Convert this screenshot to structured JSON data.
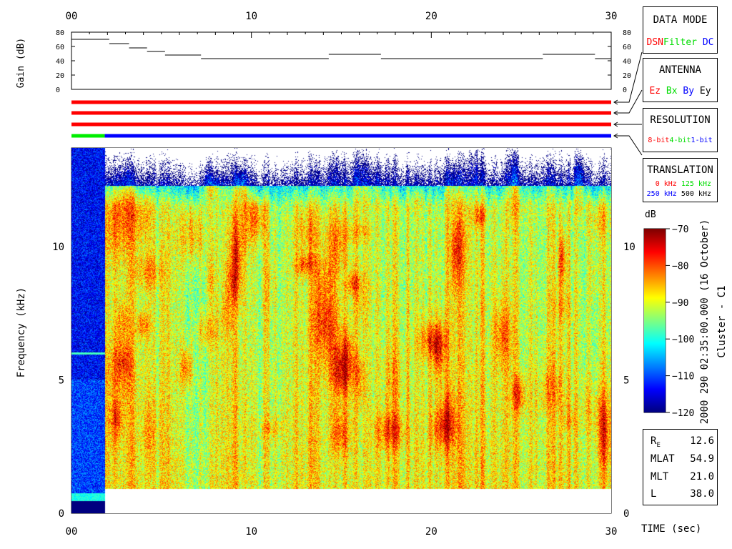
{
  "gain_panel": {
    "ylabel": "Gain (dB)",
    "yticks": [
      "80",
      "60",
      "40",
      "20",
      "0"
    ],
    "ylim": [
      0,
      80
    ],
    "xticks": [
      "00",
      "10",
      "20",
      "30"
    ],
    "xlim": [
      0,
      30
    ],
    "gain_steps": [
      {
        "x0": 0,
        "x1": 2.1,
        "y": 70
      },
      {
        "x0": 2.1,
        "x1": 3.2,
        "y": 64
      },
      {
        "x0": 3.2,
        "x1": 4.2,
        "y": 58
      },
      {
        "x0": 4.2,
        "x1": 5.2,
        "y": 53
      },
      {
        "x0": 5.2,
        "x1": 7.2,
        "y": 48
      },
      {
        "x0": 7.2,
        "x1": 14.3,
        "y": 43
      },
      {
        "x0": 14.3,
        "x1": 17.2,
        "y": 49
      },
      {
        "x0": 17.2,
        "x1": 26.2,
        "y": 43
      },
      {
        "x0": 26.2,
        "x1": 29.1,
        "y": 49
      },
      {
        "x0": 29.1,
        "x1": 30,
        "y": 43
      }
    ]
  },
  "mode_bars": [
    {
      "name": "data-mode",
      "segments": [
        {
          "x0": 0,
          "x1": 30,
          "color": "#ff0000"
        }
      ]
    },
    {
      "name": "antenna",
      "segments": [
        {
          "x0": 0,
          "x1": 30,
          "color": "#ff0000"
        }
      ]
    },
    {
      "name": "resolution",
      "segments": [
        {
          "x0": 0,
          "x1": 30,
          "color": "#ff0000"
        }
      ]
    },
    {
      "name": "translation",
      "segments": [
        {
          "x0": 0,
          "x1": 1.85,
          "color": "#00ee00"
        },
        {
          "x0": 1.85,
          "x1": 30,
          "color": "#0000ff"
        }
      ]
    }
  ],
  "legend_boxes": {
    "data_mode": {
      "title": "DATA MODE",
      "items": [
        {
          "label": "DSN",
          "color": "#ff0000"
        },
        {
          "label": "Filter",
          "color": "#00dd00"
        },
        {
          "label": "DC",
          "color": "#0000ff"
        }
      ]
    },
    "antenna": {
      "title": "ANTENNA",
      "items": [
        {
          "label": "Ez",
          "color": "#ff0000"
        },
        {
          "label": "Bx",
          "color": "#00dd00"
        },
        {
          "label": "By",
          "color": "#0000ff"
        },
        {
          "label": "Ey",
          "color": "#000000"
        }
      ]
    },
    "resolution": {
      "title": "RESOLUTION",
      "items": [
        {
          "label": "8-bit",
          "color": "#ff0000"
        },
        {
          "label": "4-bit",
          "color": "#00dd00"
        },
        {
          "label": "1-bit",
          "color": "#0000ff"
        }
      ]
    },
    "translation": {
      "title": "TRANSLATION",
      "items": [
        {
          "label": "0 kHz",
          "color": "#ff0000"
        },
        {
          "label": "125 kHz",
          "color": "#00dd00"
        },
        {
          "label": "250 kHz",
          "color": "#0000ff"
        },
        {
          "label": "500 kHz",
          "color": "#000000"
        }
      ]
    }
  },
  "chart_data": {
    "type": "heatmap",
    "xlabel": "TIME (sec)",
    "ylabel": "Frequency (kHz)",
    "xlim": [
      0,
      30
    ],
    "ylim": [
      0,
      13.7
    ],
    "xticks": [
      "00",
      "10",
      "20",
      "30"
    ],
    "yticks": [
      "0",
      "5",
      "10"
    ],
    "zlim": [
      -120,
      -70
    ],
    "colorbar_label": "dB",
    "colorbar_ticks": [
      "-70",
      "-80",
      "-90",
      "-100",
      "-110",
      "-120"
    ],
    "background_dB": -91,
    "noise_floor_freq_kHz": 0.9,
    "features": [
      {
        "x0": 0,
        "x1": 1.85,
        "note": "low-level DC filter interval",
        "level_dB": -116
      },
      {
        "y": 6.0,
        "x0": 0,
        "x1": 1.85,
        "note": "narrowband line",
        "level_dB": -98
      }
    ]
  },
  "title_vertical": "2000 290 02:35:00.000 (16 October)",
  "spacecraft": "Cluster - C1",
  "params": [
    {
      "label": "R",
      "sub": "E",
      "value": "12.6"
    },
    {
      "label": "MLAT",
      "sub": "",
      "value": "54.9"
    },
    {
      "label": "MLT",
      "sub": "",
      "value": "21.0"
    },
    {
      "label": "L",
      "sub": "",
      "value": "38.0"
    }
  ]
}
